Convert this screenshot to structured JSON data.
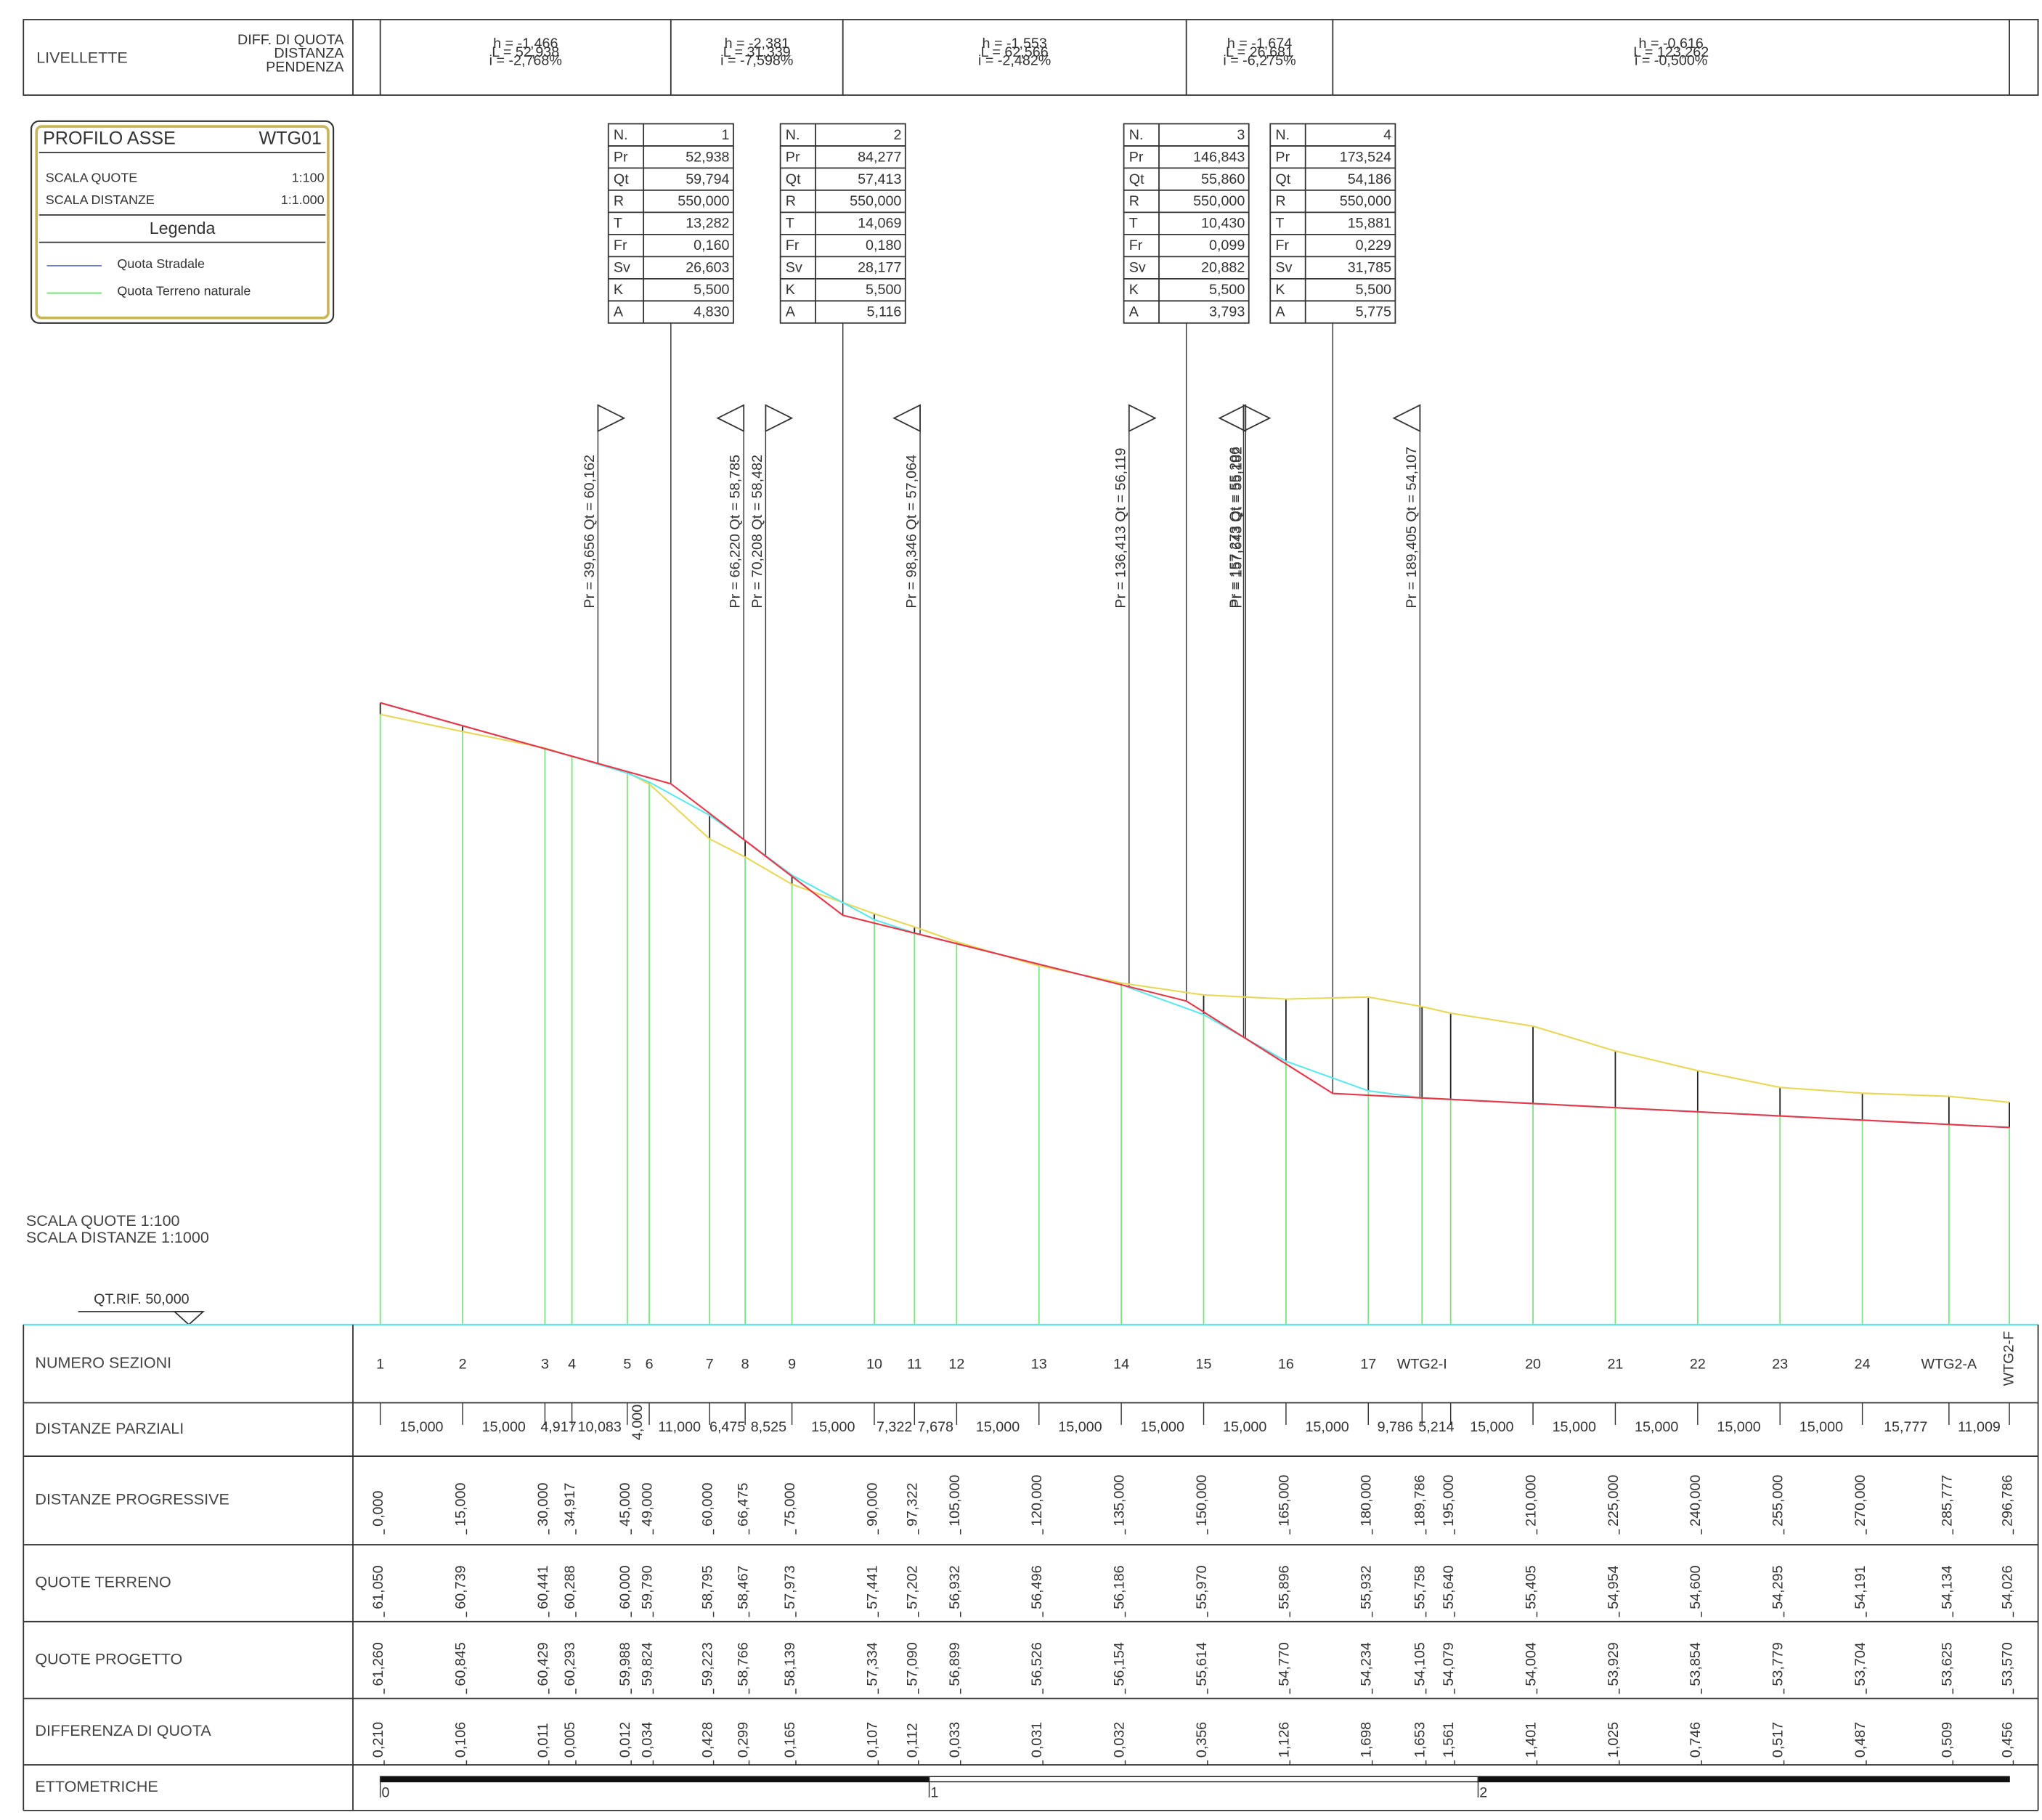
{
  "livellette": {
    "label": "LIVELLETTE",
    "headers": [
      "DIFF. DI QUOTA",
      "DISTANZA",
      "PENDENZA"
    ],
    "segments": [
      [
        "h = -1,466",
        "L = 52,938",
        "i = -2,768%"
      ],
      [
        "h = -2,381",
        "L = 31,339",
        "i = -7,598%"
      ],
      [
        "h = -1,553",
        "L = 62,566",
        "i = -2,482%"
      ],
      [
        "h = -1,674",
        "L = 26,681",
        "i = -6,275%"
      ],
      [
        "h = -0,616",
        "L = 123,262",
        "i = -0,500%"
      ]
    ]
  },
  "legend": {
    "title": "PROFILO ASSE",
    "code": "WTG01",
    "scales": [
      [
        "SCALA QUOTE",
        "1:100"
      ],
      [
        "SCALA DISTANZE",
        "1:1.000"
      ]
    ],
    "heading": "Legenda",
    "items": [
      {
        "name": "Quota Stradale",
        "color": "#6a78d8"
      },
      {
        "name": "Quota Terreno naturale",
        "color": "#6ee06e"
      }
    ]
  },
  "vertical_curves": [
    {
      "keys": [
        "N.",
        "Pr",
        "Qt",
        "R",
        "T",
        "Fr",
        "Sv",
        "K",
        "A"
      ],
      "values": [
        "1",
        "52,938",
        "59,794",
        "550,000",
        "13,282",
        "0,160",
        "26,603",
        "5,500",
        "4,830"
      ]
    },
    {
      "keys": [
        "N.",
        "Pr",
        "Qt",
        "R",
        "T",
        "Fr",
        "Sv",
        "K",
        "A"
      ],
      "values": [
        "2",
        "84,277",
        "57,413",
        "550,000",
        "14,069",
        "0,180",
        "28,177",
        "5,500",
        "5,116"
      ]
    },
    {
      "keys": [
        "N.",
        "Pr",
        "Qt",
        "R",
        "T",
        "Fr",
        "Sv",
        "K",
        "A"
      ],
      "values": [
        "3",
        "146,843",
        "55,860",
        "550,000",
        "10,430",
        "0,099",
        "20,882",
        "5,500",
        "3,793"
      ]
    },
    {
      "keys": [
        "N.",
        "Pr",
        "Qt",
        "R",
        "T",
        "Fr",
        "Sv",
        "K",
        "A"
      ],
      "values": [
        "4",
        "173,524",
        "54,186",
        "550,000",
        "15,881",
        "0,229",
        "31,785",
        "5,500",
        "5,775"
      ]
    }
  ],
  "markers": [
    {
      "label": "Pr = 39,656  Qt = 60,162",
      "side": "right"
    },
    {
      "label": "Pr = 66,220  Qt = 58,785",
      "side": "left"
    },
    {
      "label": "Pr = 70,208  Qt = 58,482",
      "side": "right"
    },
    {
      "label": "Pr = 98,346  Qt = 57,064",
      "side": "left"
    },
    {
      "label": "Pr = 136,413  Qt = 56,119",
      "side": "right"
    },
    {
      "label": "Pr = 157,273  Qt = 55,206",
      "side": "right"
    },
    {
      "label": "Pr = 157,643  Qt = 55,182",
      "side": "left"
    },
    {
      "label": "Pr = 189,405  Qt = 54,107",
      "side": "left"
    }
  ],
  "scale_note": [
    "SCALA QUOTE 1:100",
    "SCALA DISTANZE 1:1000"
  ],
  "reference": "QT.RIF. 50,000",
  "colors": {
    "terrain": "#e8d85a",
    "project": "#5ee8ee",
    "grade": "#e8384a",
    "section": "#7ee27e"
  },
  "table": {
    "sezioni": {
      "label": "NUMERO SEZIONI",
      "values": [
        "1",
        "2",
        "3",
        "4",
        "5",
        "6",
        "7",
        "8",
        "9",
        "10",
        "11",
        "12",
        "13",
        "14",
        "15",
        "16",
        "17",
        "WTG2-I",
        null,
        "20",
        "21",
        "22",
        "23",
        "24",
        "WTG2-A",
        "WTG2-F"
      ]
    },
    "parziali": {
      "label": "DISTANZE PARZIALI",
      "values": [
        "15,000",
        "15,000",
        "4,917",
        "10,083",
        "4,000",
        "11,000",
        "6,475",
        "8,525",
        "15,000",
        "7,322",
        "7,678",
        "15,000",
        "15,000",
        "15,000",
        "15,000",
        "15,000",
        "9,786",
        "5,214",
        "15,000",
        "15,000",
        "15,000",
        "15,000",
        "15,000",
        "15,777",
        "11,009"
      ]
    },
    "progressive": {
      "label": "DISTANZE PROGRESSIVE",
      "values": [
        "0,000",
        "15,000",
        "30,000",
        "34,917",
        "45,000",
        "49,000",
        "60,000",
        "66,475",
        "75,000",
        "90,000",
        "97,322",
        "105,000",
        "120,000",
        "135,000",
        "150,000",
        "165,000",
        "180,000",
        "189,786",
        "195,000",
        "210,000",
        "225,000",
        "240,000",
        "255,000",
        "270,000",
        "285,777",
        "296,786"
      ]
    },
    "terreno": {
      "label": "QUOTE TERRENO",
      "values": [
        "61,050",
        "60,739",
        "60,441",
        "60,288",
        "60,000",
        "59,790",
        "58,795",
        "58,467",
        "57,973",
        "57,441",
        "57,202",
        "56,932",
        "56,496",
        "56,186",
        "55,970",
        "55,896",
        "55,932",
        "55,758",
        "55,640",
        "55,405",
        "54,954",
        "54,600",
        "54,295",
        "54,191",
        "54,134",
        "54,026"
      ]
    },
    "progetto": {
      "label": "QUOTE PROGETTO",
      "values": [
        "61,260",
        "60,845",
        "60,429",
        "60,293",
        "59,988",
        "59,824",
        "59,223",
        "58,766",
        "58,139",
        "57,334",
        "57,090",
        "56,899",
        "56,526",
        "56,154",
        "55,614",
        "54,770",
        "54,234",
        "54,105",
        "54,079",
        "54,004",
        "53,929",
        "53,854",
        "53,779",
        "53,704",
        "53,625",
        "53,570"
      ]
    },
    "differenza": {
      "label": "DIFFERENZA DI QUOTA",
      "values": [
        "0,210",
        "0,106",
        "0,011",
        "0,005",
        "0,012",
        "0,034",
        "0,428",
        "0,299",
        "0,165",
        "0,107",
        "0,112",
        "0,033",
        "0,031",
        "0,032",
        "0,356",
        "1,126",
        "1,698",
        "1,653",
        "1,561",
        "1,401",
        "1,025",
        "0,746",
        "0,517",
        "0,487",
        "0,509",
        "0,456"
      ]
    },
    "ettometriche": {
      "label": "ETTOMETRICHE",
      "values": [
        "0",
        "1",
        "2"
      ]
    }
  }
}
